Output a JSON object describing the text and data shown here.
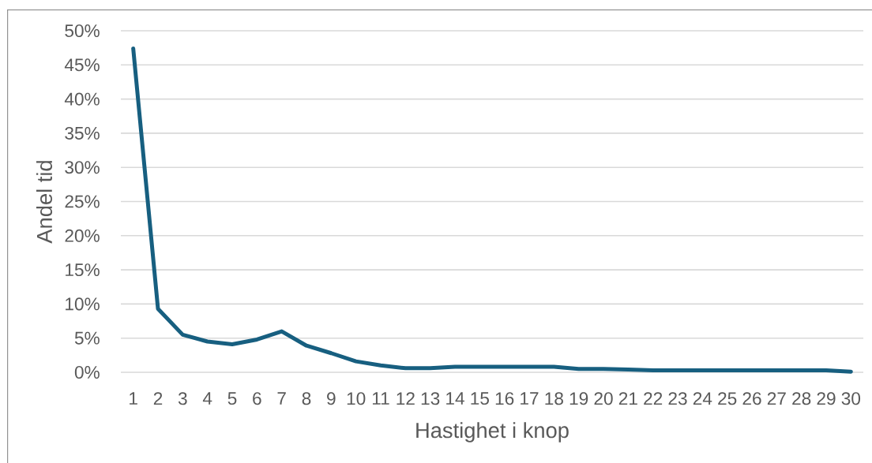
{
  "chart_data": {
    "type": "line",
    "xlabel": "Hastighet i knop",
    "ylabel": "Andel tid",
    "categories": [
      "1",
      "2",
      "3",
      "4",
      "5",
      "6",
      "7",
      "8",
      "9",
      "10",
      "11",
      "12",
      "13",
      "14",
      "15",
      "16",
      "17",
      "18",
      "19",
      "20",
      "21",
      "22",
      "23",
      "24",
      "25",
      "26",
      "27",
      "28",
      "29",
      "30"
    ],
    "series": [
      {
        "color": "#175f80",
        "values": [
          47.4,
          9.3,
          5.5,
          4.5,
          4.1,
          4.8,
          6.0,
          3.9,
          2.8,
          1.6,
          1.0,
          0.6,
          0.6,
          0.8,
          0.8,
          0.8,
          0.8,
          0.8,
          0.5,
          0.5,
          0.4,
          0.3,
          0.3,
          0.3,
          0.3,
          0.3,
          0.3,
          0.3,
          0.3,
          0.1
        ]
      }
    ],
    "ylim": [
      0,
      50
    ],
    "yticks": [
      {
        "value": 0,
        "label": "0%"
      },
      {
        "value": 5,
        "label": "5%"
      },
      {
        "value": 10,
        "label": "10%"
      },
      {
        "value": 15,
        "label": "15%"
      },
      {
        "value": 20,
        "label": "20%"
      },
      {
        "value": 25,
        "label": "25%"
      },
      {
        "value": 30,
        "label": "30%"
      },
      {
        "value": 35,
        "label": "35%"
      },
      {
        "value": 40,
        "label": "40%"
      },
      {
        "value": 45,
        "label": "45%"
      },
      {
        "value": 50,
        "label": "50%"
      }
    ],
    "grid": "y"
  }
}
